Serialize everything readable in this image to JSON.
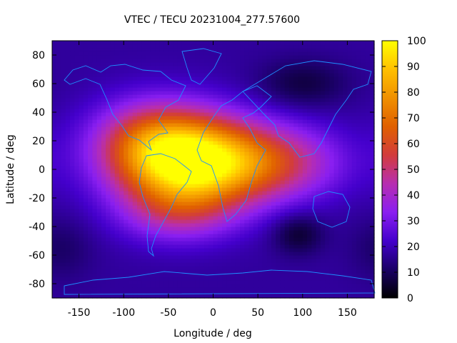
{
  "chart_data": {
    "type": "heatmap",
    "title": "VTEC / TECU 20231004_277.57600",
    "xlabel": "Longitude / deg",
    "ylabel": "Latitude / deg",
    "xlim": [
      -180,
      180
    ],
    "ylim": [
      -90,
      90
    ],
    "xticks": [
      -150,
      -100,
      -50,
      0,
      50,
      100,
      150
    ],
    "yticks": [
      -80,
      -60,
      -40,
      -20,
      0,
      20,
      40,
      60,
      80
    ],
    "colorbar": {
      "range": [
        0,
        100
      ],
      "ticks": [
        0,
        10,
        20,
        30,
        40,
        50,
        60,
        70,
        80,
        90,
        100
      ],
      "palette": [
        "#000000",
        "#1a0066",
        "#4400cc",
        "#8a1ff0",
        "#b72eb0",
        "#d23c3c",
        "#e06000",
        "#f09000",
        "#ffc000",
        "#ffff00"
      ]
    },
    "overlay": "coastlines",
    "overlay_color": "#1e90ff",
    "grid": false,
    "components": [
      {
        "name": "background",
        "amplitude": 17
      },
      {
        "name": "equatorial-peak",
        "lon": -25,
        "lat": 5,
        "amplitude": 78,
        "lon_width": 55,
        "lat_width": 22
      },
      {
        "name": "western-ridge",
        "lon": -70,
        "lat": 20,
        "amplitude": 30,
        "lon_width": 45,
        "lat_width": 20
      },
      {
        "name": "eastern-ridge",
        "lon": 65,
        "lat": 5,
        "amplitude": 32,
        "lon_width": 55,
        "lat_width": 18
      },
      {
        "name": "southern-crest",
        "lon": -40,
        "lat": -30,
        "amplitude": 20,
        "lon_width": 45,
        "lat_width": 15
      },
      {
        "name": "depression-asia",
        "lon": 100,
        "lat": 60,
        "amplitude": -10,
        "lon_width": 35,
        "lat_width": 12
      },
      {
        "name": "depression-indian-ocean",
        "lon": 95,
        "lat": -45,
        "amplitude": -12,
        "lon_width": 20,
        "lat_width": 10
      },
      {
        "name": "depression-pacific-south",
        "lon": -170,
        "lat": -55,
        "amplitude": -6,
        "lon_width": 25,
        "lat_width": 15
      }
    ]
  }
}
